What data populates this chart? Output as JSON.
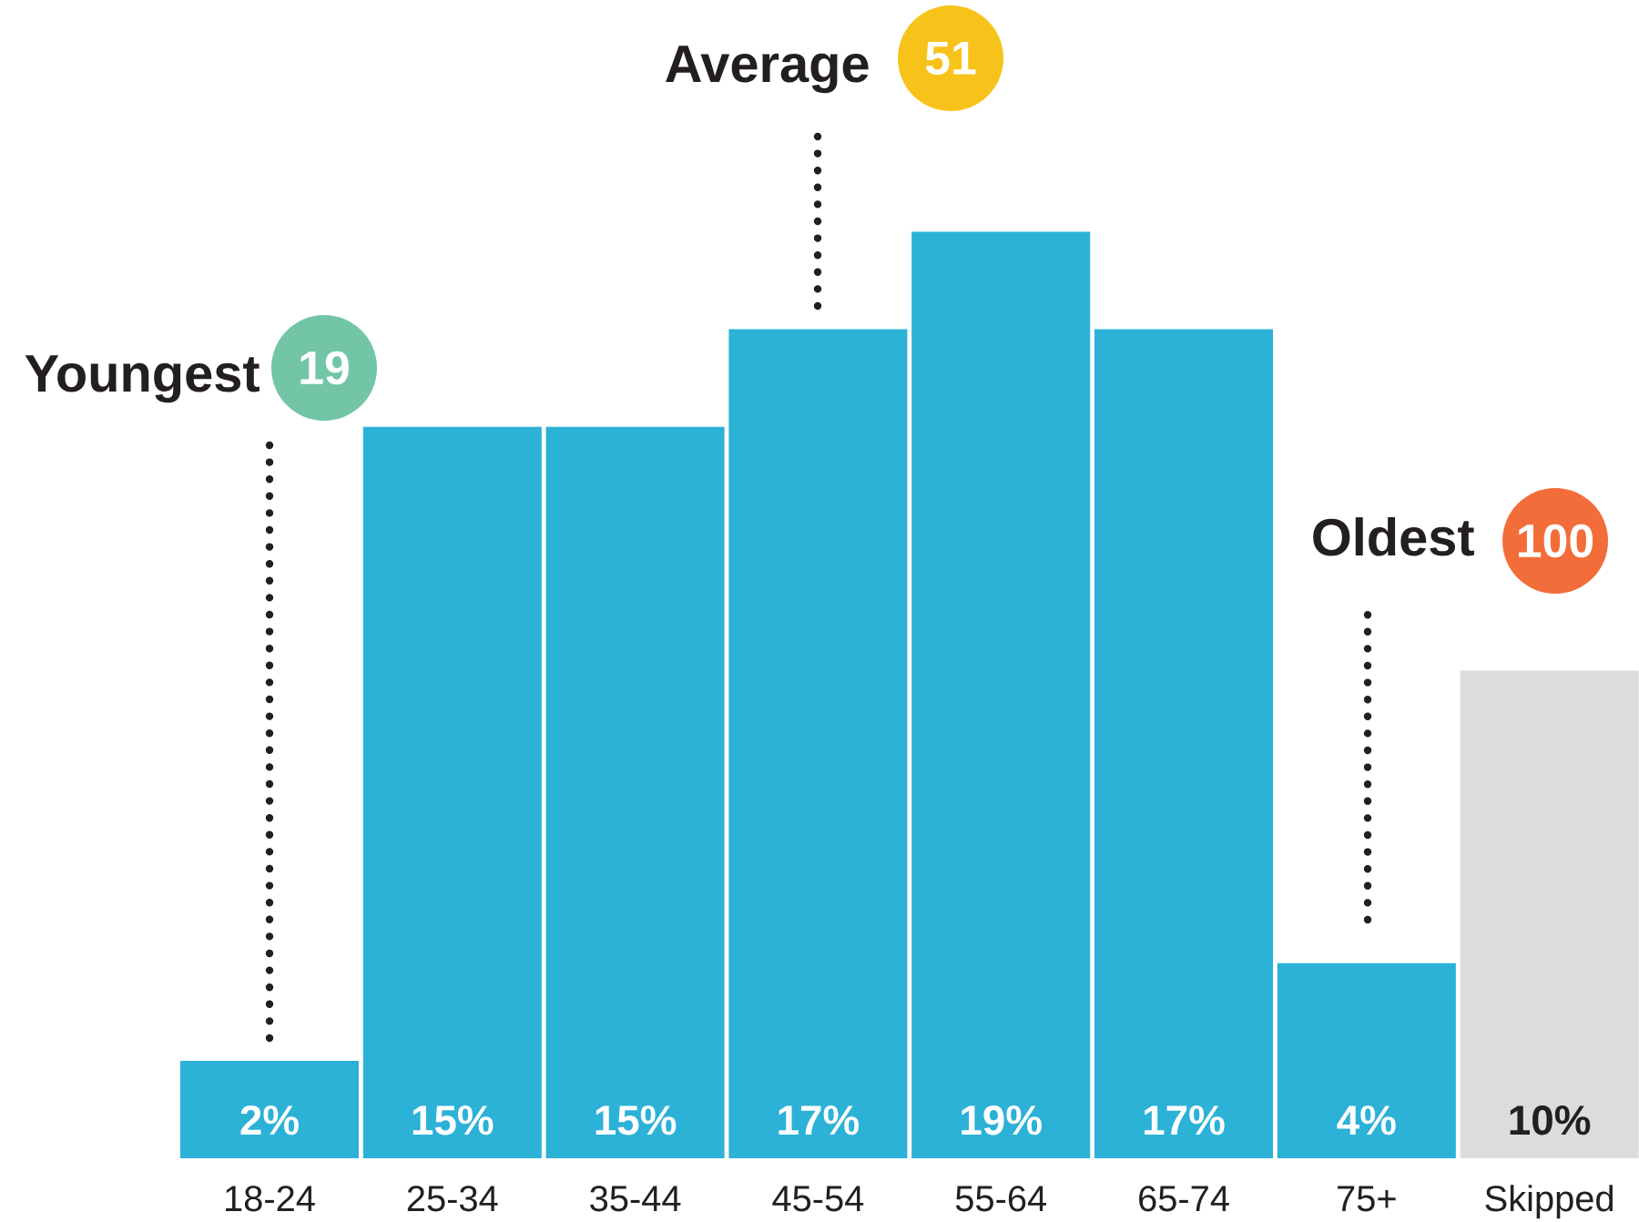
{
  "chart_data": {
    "type": "bar",
    "categories": [
      "18-24",
      "25-34",
      "35-44",
      "45-54",
      "55-64",
      "65-74",
      "75+",
      "Skipped"
    ],
    "values": [
      2,
      15,
      15,
      17,
      19,
      17,
      4,
      10
    ],
    "colors": [
      "#2cb1d7",
      "#2cb1d7",
      "#2cb1d7",
      "#2cb1d7",
      "#2cb1d7",
      "#2cb1d7",
      "#2cb1d7",
      "#dcdcda"
    ],
    "value_labels": [
      "2%",
      "15%",
      "15%",
      "17%",
      "19%",
      "17%",
      "4%",
      "10%"
    ],
    "annotations": [
      "Youngest",
      "19",
      "Average",
      "51",
      "Oldest",
      "100"
    ]
  }
}
